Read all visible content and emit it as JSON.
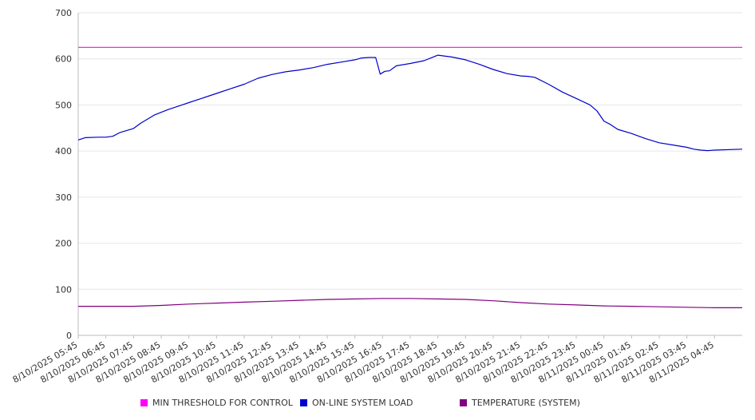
{
  "chart_data": {
    "type": "line",
    "ylim": [
      0,
      700
    ],
    "yticks": [
      "0",
      "100",
      "200",
      "300",
      "400",
      "500",
      "600",
      "700"
    ],
    "xticks": [
      "8/10/2025 05:45",
      "8/10/2025 06:45",
      "8/10/2025 07:45",
      "8/10/2025 08:45",
      "8/10/2025 09:45",
      "8/10/2025 10:45",
      "8/10/2025 11:45",
      "8/10/2025 12:45",
      "8/10/2025 13:45",
      "8/10/2025 14:45",
      "8/10/2025 15:45",
      "8/10/2025 16:45",
      "8/10/2025 17:45",
      "8/10/2025 18:45",
      "8/10/2025 19:45",
      "8/10/2025 20:45",
      "8/10/2025 21:45",
      "8/10/2025 22:45",
      "8/10/2025 23:45",
      "8/11/2025 00:45",
      "8/11/2025 01:45",
      "8/11/2025 02:45",
      "8/11/2025 03:45",
      "8/11/2025 04:45"
    ],
    "x_start": "8/10/2025 05:45",
    "x_end": "8/11/2025 05:45",
    "grid": true,
    "legend": "bottom",
    "series": [
      {
        "name": "MIN THRESHOLD FOR CONTROL",
        "color": "#ff00ff",
        "points": [
          [
            "8/10/2025 05:45",
            625
          ],
          [
            "8/11/2025 05:45",
            625
          ]
        ]
      },
      {
        "name": "ON-LINE SYSTEM LOAD",
        "color": "#0000cc",
        "points": [
          [
            "8/10/2025 05:45",
            424
          ],
          [
            "8/10/2025 06:00",
            429
          ],
          [
            "8/10/2025 06:30",
            430
          ],
          [
            "8/10/2025 06:45",
            430
          ],
          [
            "8/10/2025 07:00",
            432
          ],
          [
            "8/10/2025 07:15",
            440
          ],
          [
            "8/10/2025 07:45",
            449
          ],
          [
            "8/10/2025 08:00",
            460
          ],
          [
            "8/10/2025 08:30",
            478
          ],
          [
            "8/10/2025 09:00",
            490
          ],
          [
            "8/10/2025 09:30",
            500
          ],
          [
            "8/10/2025 09:45",
            505
          ],
          [
            "8/10/2025 10:15",
            515
          ],
          [
            "8/10/2025 10:45",
            525
          ],
          [
            "8/10/2025 11:15",
            535
          ],
          [
            "8/10/2025 11:45",
            545
          ],
          [
            "8/10/2025 12:15",
            558
          ],
          [
            "8/10/2025 12:45",
            566
          ],
          [
            "8/10/2025 13:15",
            572
          ],
          [
            "8/10/2025 13:45",
            576
          ],
          [
            "8/10/2025 14:15",
            581
          ],
          [
            "8/10/2025 14:45",
            588
          ],
          [
            "8/10/2025 15:15",
            593
          ],
          [
            "8/10/2025 15:45",
            598
          ],
          [
            "8/10/2025 16:00",
            602
          ],
          [
            "8/10/2025 16:15",
            603
          ],
          [
            "8/10/2025 16:30",
            603
          ],
          [
            "8/10/2025 16:40",
            567
          ],
          [
            "8/10/2025 16:50",
            573
          ],
          [
            "8/10/2025 17:00",
            574
          ],
          [
            "8/10/2025 17:15",
            585
          ],
          [
            "8/10/2025 17:45",
            590
          ],
          [
            "8/10/2025 18:15",
            596
          ],
          [
            "8/10/2025 18:30",
            602
          ],
          [
            "8/10/2025 18:45",
            608
          ],
          [
            "8/10/2025 19:15",
            604
          ],
          [
            "8/10/2025 19:45",
            598
          ],
          [
            "8/10/2025 20:15",
            588
          ],
          [
            "8/10/2025 20:45",
            577
          ],
          [
            "8/10/2025 21:15",
            568
          ],
          [
            "8/10/2025 21:45",
            563
          ],
          [
            "8/10/2025 22:00",
            562
          ],
          [
            "8/10/2025 22:15",
            560
          ],
          [
            "8/10/2025 22:45",
            545
          ],
          [
            "8/10/2025 23:15",
            528
          ],
          [
            "8/10/2025 23:45",
            514
          ],
          [
            "8/11/2025 00:15",
            500
          ],
          [
            "8/11/2025 00:30",
            487
          ],
          [
            "8/11/2025 00:45",
            465
          ],
          [
            "8/11/2025 01:00",
            457
          ],
          [
            "8/11/2025 01:15",
            447
          ],
          [
            "8/11/2025 01:45",
            438
          ],
          [
            "8/11/2025 02:15",
            427
          ],
          [
            "8/11/2025 02:45",
            418
          ],
          [
            "8/11/2025 03:15",
            413
          ],
          [
            "8/11/2025 03:45",
            408
          ],
          [
            "8/11/2025 04:00",
            404
          ],
          [
            "8/11/2025 04:15",
            402
          ],
          [
            "8/11/2025 04:30",
            401
          ],
          [
            "8/11/2025 04:45",
            402
          ],
          [
            "8/11/2025 05:45",
            404
          ]
        ]
      },
      {
        "name": "TEMPERATURE (SYSTEM)",
        "color": "#800080",
        "points": [
          [
            "8/10/2025 05:45",
            63
          ],
          [
            "8/10/2025 07:45",
            63
          ],
          [
            "8/10/2025 08:45",
            65
          ],
          [
            "8/10/2025 09:45",
            68
          ],
          [
            "8/10/2025 10:45",
            70
          ],
          [
            "8/10/2025 11:45",
            72
          ],
          [
            "8/10/2025 12:45",
            74
          ],
          [
            "8/10/2025 13:45",
            76
          ],
          [
            "8/10/2025 14:45",
            78
          ],
          [
            "8/10/2025 15:45",
            79
          ],
          [
            "8/10/2025 16:45",
            80
          ],
          [
            "8/10/2025 17:45",
            80
          ],
          [
            "8/10/2025 18:45",
            79
          ],
          [
            "8/10/2025 19:45",
            78
          ],
          [
            "8/10/2025 20:45",
            75
          ],
          [
            "8/10/2025 21:45",
            71
          ],
          [
            "8/10/2025 22:45",
            68
          ],
          [
            "8/10/2025 23:45",
            66
          ],
          [
            "8/11/2025 00:45",
            64
          ],
          [
            "8/11/2025 01:45",
            63
          ],
          [
            "8/11/2025 02:45",
            62
          ],
          [
            "8/11/2025 03:45",
            61
          ],
          [
            "8/11/2025 04:45",
            60
          ],
          [
            "8/11/2025 05:45",
            60
          ]
        ]
      }
    ]
  }
}
